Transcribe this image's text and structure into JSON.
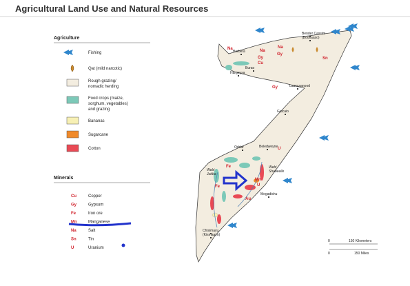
{
  "title": "Agricultural Land Use and Natural Resources",
  "legend": {
    "agriculture_heading": "Agriculture",
    "agriculture": [
      "Fishing",
      "Qat (mild narcotic)",
      "Rough grazing/",
      "nomadic herding",
      "Food crops (maize,",
      "sorghum, vegetables)",
      "and grazing",
      "Bananas",
      "Sugarcane",
      "Cotton"
    ],
    "minerals_heading": "Minerals",
    "minerals": [
      {
        "code": "Cu",
        "name": "Copper"
      },
      {
        "code": "Gy",
        "name": "Gypsum"
      },
      {
        "code": "Fe",
        "name": "Iron ore"
      },
      {
        "code": "Mn",
        "name": "Manganese"
      },
      {
        "code": "Na",
        "name": "Salt"
      },
      {
        "code": "Sn",
        "name": "Tin"
      },
      {
        "code": "U",
        "name": "Uranium"
      }
    ]
  },
  "map": {
    "places": [
      "Bender Cassim",
      "(Boosaaso)",
      "Berbera",
      "Hargeysa",
      "Burao",
      "Laascaanood",
      "Galcaio",
      "Oddur",
      "Beledweyne",
      "Mogadishu",
      "Chisimayu",
      "(Kismaayo)"
    ],
    "rivers": [
      "Webi",
      "Jubba",
      "Webi",
      "Shabeelle"
    ],
    "minerals": [
      "Na",
      "Na",
      "Gy",
      "Cu",
      "Na",
      "Gy",
      "Sn",
      "Gy",
      "U",
      "Fe",
      "Fe",
      "Mn",
      "U",
      "Au"
    ],
    "scale": [
      "0",
      "150 Kilometers",
      "0",
      "150 Miles"
    ]
  }
}
